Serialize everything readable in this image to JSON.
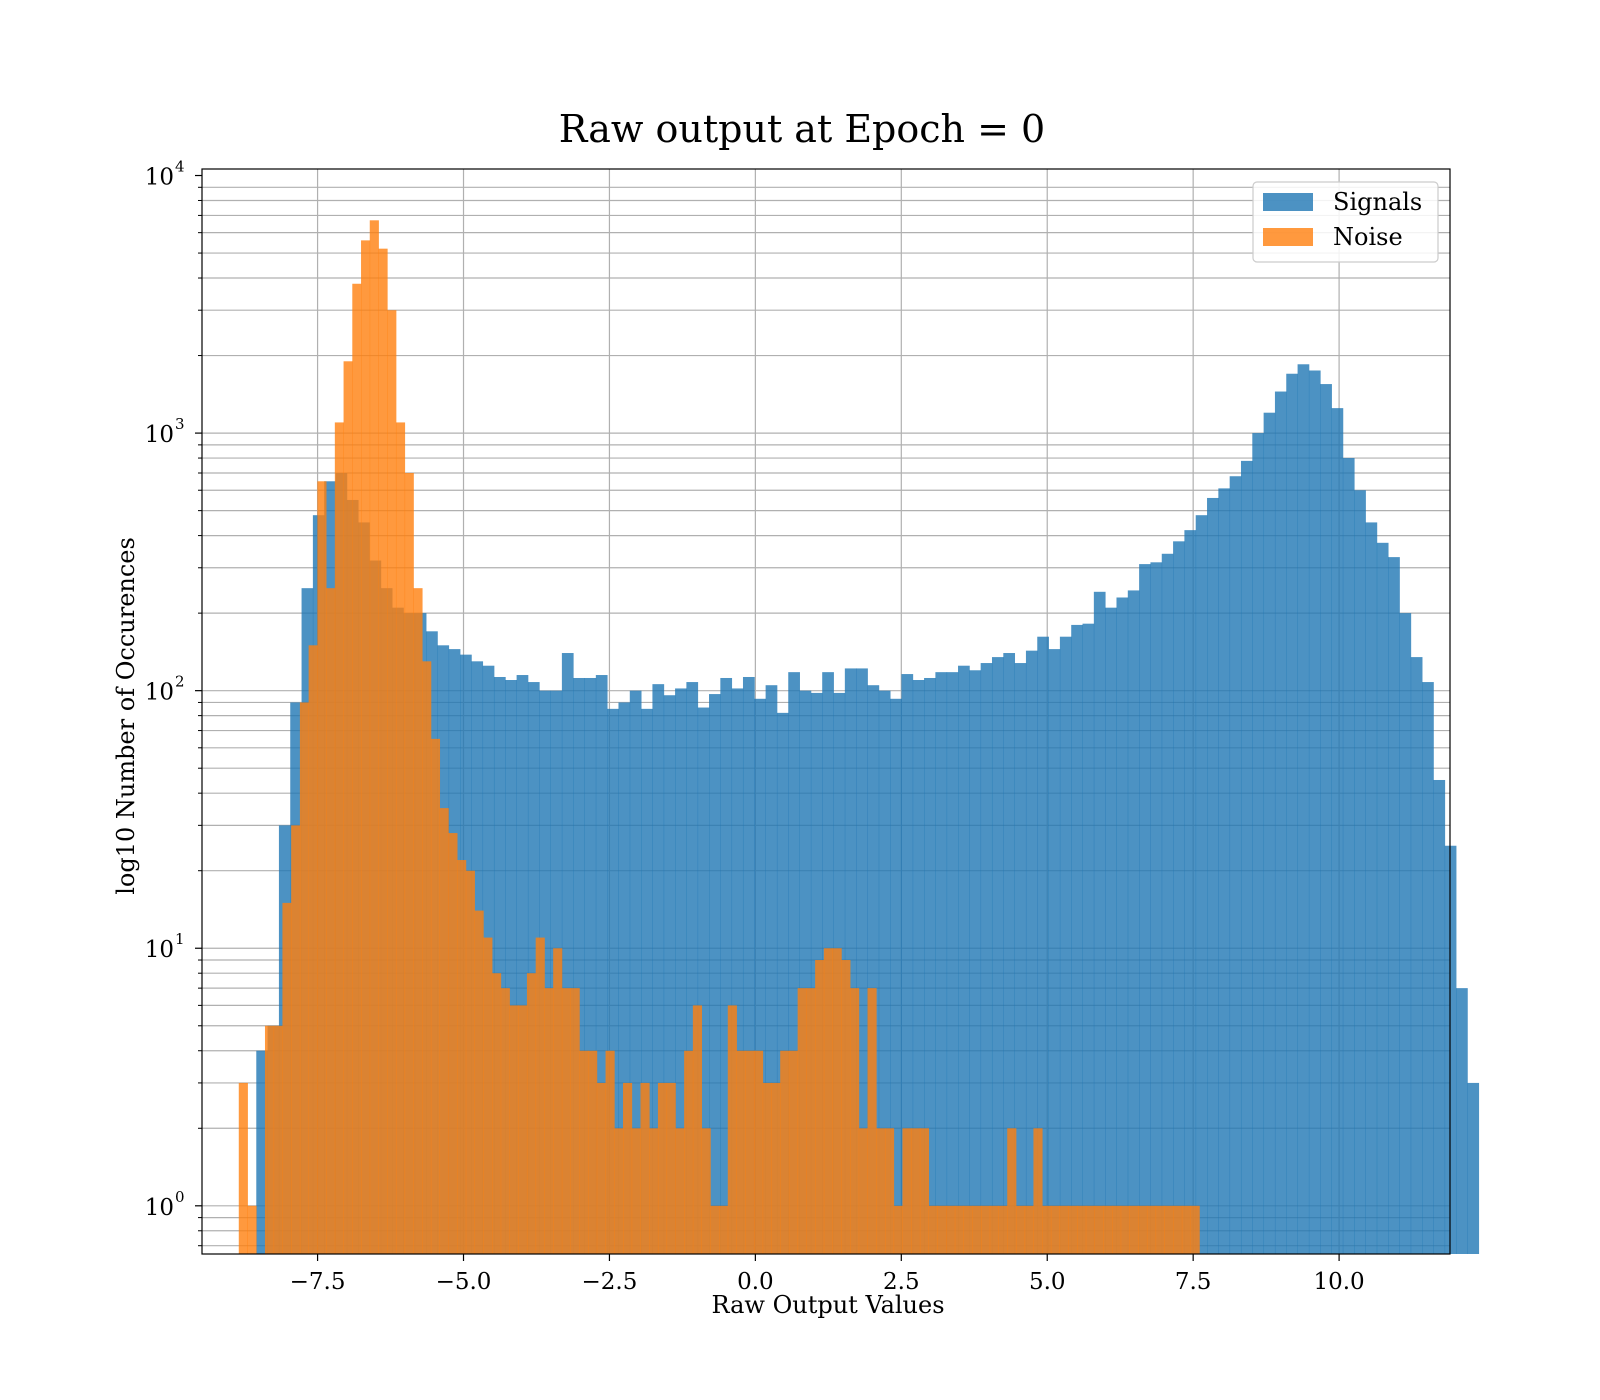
{
  "chart_data": {
    "type": "bar",
    "title": "Raw output at Epoch = 0",
    "xlabel": "Raw Output Values",
    "ylabel": "log10 Number of Occurences",
    "xlim": [
      -9.48,
      11.9
    ],
    "ylim": [
      0.65,
      10600
    ],
    "yscale": "log",
    "grid": true,
    "legend_position": "top-right",
    "x_ticks": [
      {
        "value": -7.5,
        "label": "−7.5"
      },
      {
        "value": -5.0,
        "label": "−5.0"
      },
      {
        "value": -2.5,
        "label": "−2.5"
      },
      {
        "value": 0.0,
        "label": "0.0"
      },
      {
        "value": 2.5,
        "label": "2.5"
      },
      {
        "value": 5.0,
        "label": "5.0"
      },
      {
        "value": 7.5,
        "label": "7.5"
      },
      {
        "value": 10.0,
        "label": "10.0"
      }
    ],
    "y_ticks": [
      {
        "value": 1,
        "base": "10",
        "exp": "0"
      },
      {
        "value": 10,
        "base": "10",
        "exp": "1"
      },
      {
        "value": 100,
        "base": "10",
        "exp": "2"
      },
      {
        "value": 1000,
        "base": "10",
        "exp": "3"
      },
      {
        "value": 10000,
        "base": "10",
        "exp": "4"
      }
    ],
    "series": [
      {
        "name": "Signals",
        "color": "#1f77b4",
        "opacity": 0.8,
        "bin_start": -8.55,
        "bin_width": 0.1939,
        "values": [
          4,
          5,
          30,
          90,
          250,
          480,
          650,
          700,
          550,
          450,
          320,
          250,
          210,
          200,
          200,
          170,
          150,
          145,
          138,
          130,
          125,
          113,
          110,
          115,
          108,
          100,
          100,
          140,
          112,
          112,
          115,
          85,
          90,
          100,
          85,
          106,
          96,
          102,
          108,
          86,
          97,
          112,
          102,
          113,
          93,
          105,
          82,
          118,
          100,
          98,
          118,
          98,
          122,
          122,
          105,
          100,
          93,
          116,
          110,
          112,
          118,
          118,
          125,
          120,
          128,
          135,
          140,
          128,
          143,
          162,
          145,
          162,
          180,
          182,
          242,
          210,
          230,
          245,
          310,
          315,
          340,
          380,
          420,
          480,
          560,
          610,
          680,
          780,
          1000,
          1200,
          1450,
          1700,
          1850,
          1750,
          1550,
          1250,
          800,
          600,
          450,
          375,
          330,
          200,
          135,
          108,
          45,
          25,
          7,
          3
        ]
      },
      {
        "name": "Noise",
        "color": "#ff7f0e",
        "opacity": 0.8,
        "bin_start": -8.85,
        "bin_width": 0.1496,
        "values": [
          3,
          1,
          0,
          5,
          5,
          15,
          30,
          90,
          150,
          650,
          250,
          1100,
          1900,
          3800,
          5600,
          6700,
          5200,
          3000,
          1100,
          700,
          250,
          130,
          65,
          35,
          28,
          22,
          20,
          14,
          11,
          8,
          7,
          6,
          6,
          8,
          11,
          7,
          10,
          7,
          7,
          4,
          4,
          3,
          4,
          2,
          3,
          2,
          3,
          2,
          3,
          3,
          2,
          4,
          6,
          2,
          1,
          1,
          6,
          4,
          4,
          4,
          3,
          3,
          4,
          4,
          7,
          7,
          9,
          10,
          10,
          9,
          7,
          2,
          7,
          2,
          2,
          1,
          2,
          2,
          2,
          1,
          1,
          1,
          1,
          1,
          1,
          1,
          1,
          1,
          2,
          1,
          1,
          2,
          1,
          1,
          1,
          1,
          1,
          1,
          1,
          1,
          1,
          1,
          1,
          1,
          1,
          1,
          1,
          1,
          1,
          1
        ]
      }
    ]
  }
}
